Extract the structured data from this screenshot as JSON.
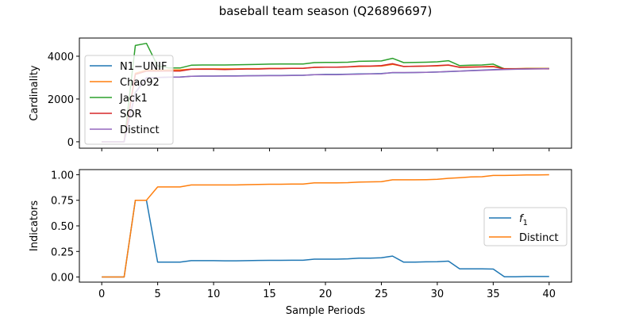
{
  "figure": {
    "title": "baseball team season (Q26896697)"
  },
  "chart_data": [
    {
      "type": "line",
      "title": "",
      "xlabel": "",
      "ylabel": "Cardinality",
      "xlim": [
        -2,
        42
      ],
      "ylim": [
        -300,
        4850
      ],
      "xticks": [
        0,
        5,
        10,
        15,
        20,
        25,
        30,
        35,
        40
      ],
      "show_xtick_labels": false,
      "yticks": [
        0,
        2000,
        4000
      ],
      "ytick_labels": [
        "0",
        "2000",
        "4000"
      ],
      "grid": false,
      "legend": "upper-left",
      "x": [
        0,
        1,
        2,
        3,
        4,
        5,
        6,
        7,
        8,
        9,
        10,
        11,
        12,
        13,
        14,
        15,
        16,
        17,
        18,
        19,
        20,
        21,
        22,
        23,
        24,
        25,
        26,
        27,
        28,
        29,
        30,
        31,
        32,
        33,
        34,
        35,
        36,
        37,
        38,
        39,
        40
      ],
      "series": [
        {
          "name": "N1−UNIF",
          "color": "#1f77b4",
          "values": [
            0,
            0,
            0,
            2300,
            3000,
            3010,
            3020,
            3030,
            3060,
            3070,
            3070,
            3080,
            3080,
            3090,
            3090,
            3100,
            3100,
            3110,
            3110,
            3140,
            3150,
            3150,
            3160,
            3170,
            3180,
            3190,
            3230,
            3230,
            3240,
            3250,
            3260,
            3280,
            3300,
            3330,
            3350,
            3370,
            3390,
            3400,
            3410,
            3420,
            3420
          ]
        },
        {
          "name": "Chao92",
          "color": "#ff7f0e",
          "values": [
            0,
            0,
            0,
            3200,
            3350,
            3350,
            3360,
            3360,
            3400,
            3410,
            3410,
            3410,
            3410,
            3420,
            3420,
            3430,
            3430,
            3440,
            3440,
            3480,
            3490,
            3490,
            3500,
            3520,
            3530,
            3540,
            3620,
            3520,
            3530,
            3540,
            3550,
            3580,
            3490,
            3500,
            3510,
            3530,
            3420,
            3420,
            3430,
            3430,
            3430
          ]
        },
        {
          "name": "Jack1",
          "color": "#2ca02c",
          "values": [
            0,
            0,
            0,
            4500,
            4600,
            3550,
            3450,
            3450,
            3580,
            3590,
            3590,
            3590,
            3600,
            3610,
            3620,
            3630,
            3640,
            3640,
            3640,
            3700,
            3710,
            3710,
            3720,
            3760,
            3770,
            3780,
            3900,
            3700,
            3710,
            3720,
            3740,
            3790,
            3560,
            3580,
            3590,
            3630,
            3410,
            3410,
            3420,
            3420,
            3420
          ]
        },
        {
          "name": "SOR",
          "color": "#d62728",
          "values": [
            0,
            0,
            0,
            3150,
            3300,
            3300,
            3310,
            3310,
            3390,
            3390,
            3390,
            3380,
            3390,
            3400,
            3400,
            3420,
            3420,
            3430,
            3430,
            3480,
            3490,
            3490,
            3500,
            3540,
            3540,
            3560,
            3650,
            3520,
            3530,
            3540,
            3560,
            3590,
            3480,
            3490,
            3500,
            3510,
            3410,
            3410,
            3410,
            3410,
            3410
          ]
        },
        {
          "name": "Distinct",
          "color": "#9467bd",
          "values": [
            0,
            0,
            0,
            2280,
            3000,
            3010,
            3020,
            3020,
            3060,
            3070,
            3070,
            3070,
            3070,
            3080,
            3090,
            3090,
            3090,
            3100,
            3110,
            3140,
            3140,
            3140,
            3150,
            3160,
            3170,
            3180,
            3240,
            3240,
            3240,
            3250,
            3260,
            3290,
            3300,
            3320,
            3340,
            3360,
            3380,
            3390,
            3400,
            3410,
            3420
          ]
        }
      ]
    },
    {
      "type": "line",
      "title": "",
      "xlabel": "Sample Periods",
      "ylabel": "Indicators",
      "xlim": [
        -2,
        42
      ],
      "ylim": [
        -0.05,
        1.05
      ],
      "xticks": [
        0,
        5,
        10,
        15,
        20,
        25,
        30,
        35,
        40
      ],
      "xtick_labels": [
        "0",
        "5",
        "10",
        "15",
        "20",
        "25",
        "30",
        "35",
        "40"
      ],
      "yticks": [
        0,
        0.25,
        0.5,
        0.75,
        1.0
      ],
      "ytick_labels": [
        "0.00",
        "0.25",
        "0.50",
        "0.75",
        "1.00"
      ],
      "grid": false,
      "legend": "center-right",
      "x": [
        0,
        1,
        2,
        3,
        4,
        5,
        6,
        7,
        8,
        9,
        10,
        11,
        12,
        13,
        14,
        15,
        16,
        17,
        18,
        19,
        20,
        21,
        22,
        23,
        24,
        25,
        26,
        27,
        28,
        29,
        30,
        31,
        32,
        33,
        34,
        35,
        36,
        37,
        38,
        39,
        40
      ],
      "series": [
        {
          "name": "f1",
          "color": "#1f77b4",
          "values": [
            0,
            0,
            0,
            0.75,
            0.75,
            0.145,
            0.145,
            0.145,
            0.16,
            0.16,
            0.16,
            0.158,
            0.158,
            0.16,
            0.162,
            0.163,
            0.163,
            0.164,
            0.164,
            0.175,
            0.175,
            0.175,
            0.178,
            0.185,
            0.185,
            0.188,
            0.205,
            0.145,
            0.145,
            0.148,
            0.15,
            0.155,
            0.08,
            0.08,
            0.08,
            0.078,
            0.003,
            0.003,
            0.005,
            0.005,
            0.005
          ]
        },
        {
          "name": "Distinct",
          "color": "#ff7f0e",
          "values": [
            0,
            0,
            0,
            0.75,
            0.75,
            0.88,
            0.88,
            0.88,
            0.9,
            0.9,
            0.9,
            0.9,
            0.9,
            0.903,
            0.905,
            0.907,
            0.907,
            0.908,
            0.908,
            0.92,
            0.92,
            0.92,
            0.922,
            0.928,
            0.93,
            0.932,
            0.95,
            0.95,
            0.95,
            0.952,
            0.955,
            0.965,
            0.97,
            0.978,
            0.98,
            0.993,
            0.993,
            0.995,
            0.997,
            0.998,
            1.0
          ]
        }
      ]
    }
  ]
}
